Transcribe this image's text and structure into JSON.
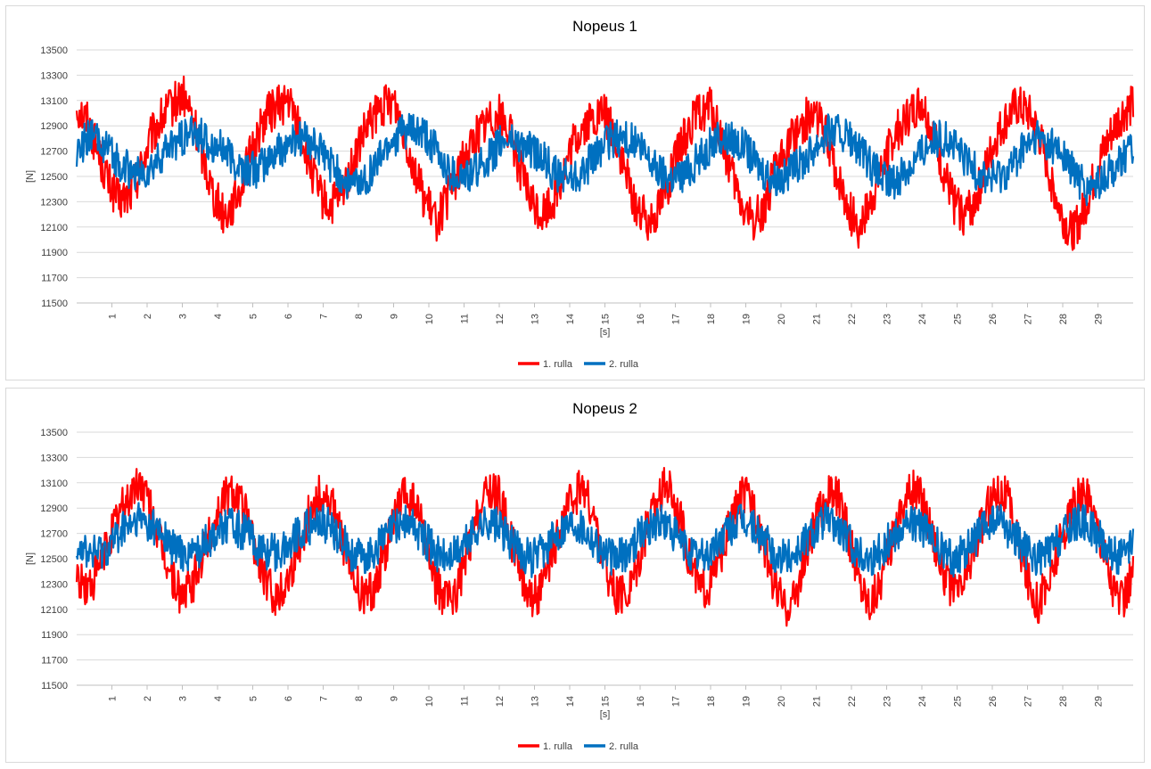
{
  "chart_data": [
    {
      "type": "line",
      "title": "Nopeus 1",
      "xlabel": "[s]",
      "ylabel": "[N]",
      "ylim": [
        11500,
        13500
      ],
      "yticks": [
        11500,
        11700,
        11900,
        12100,
        12300,
        12500,
        12700,
        12900,
        13100,
        13300,
        13500
      ],
      "xlim": [
        0,
        30
      ],
      "xticks": [
        1,
        2,
        3,
        4,
        5,
        6,
        7,
        8,
        9,
        10,
        11,
        12,
        13,
        14,
        15,
        16,
        17,
        18,
        19,
        20,
        21,
        22,
        23,
        24,
        25,
        26,
        27,
        28,
        29
      ],
      "grid": true,
      "legend_position": "bottom",
      "series": [
        {
          "name": "1. rulla",
          "color": "#ff0000",
          "x": [
            0,
            0.3,
            0.6,
            0.9,
            1.2,
            1.5,
            1.8,
            2.1,
            2.4,
            2.7,
            3.0,
            3.3,
            3.6,
            3.9,
            4.2,
            4.5,
            4.8,
            5.1,
            5.4,
            5.7,
            6.0,
            6.3,
            6.6,
            6.9,
            7.2,
            7.5,
            7.8,
            8.1,
            8.4,
            8.7,
            9.0,
            9.3,
            9.6,
            9.9,
            10.2,
            10.5,
            10.8,
            11.1,
            11.4,
            11.7,
            12.0,
            12.3,
            12.6,
            12.9,
            13.2,
            13.5,
            13.8,
            14.1,
            14.4,
            14.7,
            15.0,
            15.3,
            15.6,
            15.9,
            16.2,
            16.5,
            16.8,
            17.1,
            17.4,
            17.7,
            18.0,
            18.3,
            18.6,
            18.9,
            19.2,
            19.5,
            19.8,
            20.1,
            20.4,
            20.7,
            21.0,
            21.3,
            21.6,
            21.9,
            22.2,
            22.5,
            22.8,
            23.1,
            23.4,
            23.7,
            24.0,
            24.3,
            24.6,
            24.9,
            25.2,
            25.5,
            25.8,
            26.1,
            26.4,
            26.7,
            27.0,
            27.3,
            27.6,
            27.9,
            28.2,
            28.5,
            28.8,
            29.1,
            29.4,
            29.7,
            30.0
          ],
          "y": [
            13050,
            12950,
            12700,
            12450,
            12300,
            12350,
            12550,
            12800,
            12950,
            13050,
            13150,
            12950,
            12650,
            12350,
            12200,
            12300,
            12550,
            12800,
            13000,
            13050,
            13100,
            12900,
            12600,
            12350,
            12250,
            12350,
            12550,
            12800,
            12950,
            13050,
            13100,
            12850,
            12550,
            12300,
            12150,
            12300,
            12500,
            12700,
            12850,
            12950,
            13000,
            12850,
            12550,
            12300,
            12200,
            12300,
            12500,
            12750,
            12900,
            12950,
            13000,
            12800,
            12500,
            12250,
            12150,
            12250,
            12450,
            12700,
            12900,
            13000,
            13050,
            12800,
            12500,
            12250,
            12150,
            12250,
            12500,
            12700,
            12850,
            12950,
            13000,
            12800,
            12500,
            12250,
            12100,
            12250,
            12500,
            12750,
            12900,
            13000,
            13100,
            12850,
            12550,
            12300,
            12200,
            12300,
            12550,
            12800,
            12950,
            13050,
            13000,
            12850,
            12550,
            12250,
            12050,
            12150,
            12400,
            12650,
            12850,
            13000,
            13050
          ]
        },
        {
          "name": "2. rulla",
          "color": "#0070c0",
          "x": [
            0,
            0.3,
            0.6,
            0.9,
            1.2,
            1.5,
            1.8,
            2.1,
            2.4,
            2.7,
            3.0,
            3.3,
            3.6,
            3.9,
            4.2,
            4.5,
            4.8,
            5.1,
            5.4,
            5.7,
            6.0,
            6.3,
            6.6,
            6.9,
            7.2,
            7.5,
            7.8,
            8.1,
            8.4,
            8.7,
            9.0,
            9.3,
            9.6,
            9.9,
            10.2,
            10.5,
            10.8,
            11.1,
            11.4,
            11.7,
            12.0,
            12.3,
            12.6,
            12.9,
            13.2,
            13.5,
            13.8,
            14.1,
            14.4,
            14.7,
            15.0,
            15.3,
            15.6,
            15.9,
            16.2,
            16.5,
            16.8,
            17.1,
            17.4,
            17.7,
            18.0,
            18.3,
            18.6,
            18.9,
            19.2,
            19.5,
            19.8,
            20.1,
            20.4,
            20.7,
            21.0,
            21.3,
            21.6,
            21.9,
            22.2,
            22.5,
            22.8,
            23.1,
            23.4,
            23.7,
            24.0,
            24.3,
            24.6,
            24.9,
            25.2,
            25.5,
            25.8,
            26.1,
            26.4,
            26.7,
            27.0,
            27.3,
            27.6,
            27.9,
            28.2,
            28.5,
            28.8,
            29.1,
            29.4,
            29.7,
            30.0
          ],
          "y": [
            12700,
            12800,
            12800,
            12700,
            12600,
            12550,
            12500,
            12550,
            12650,
            12750,
            12800,
            12850,
            12800,
            12750,
            12700,
            12600,
            12550,
            12550,
            12600,
            12700,
            12750,
            12800,
            12800,
            12700,
            12600,
            12500,
            12450,
            12450,
            12550,
            12700,
            12800,
            12850,
            12850,
            12800,
            12700,
            12550,
            12500,
            12500,
            12550,
            12650,
            12750,
            12800,
            12750,
            12700,
            12650,
            12550,
            12500,
            12500,
            12550,
            12650,
            12750,
            12800,
            12800,
            12750,
            12650,
            12550,
            12500,
            12500,
            12550,
            12650,
            12750,
            12800,
            12800,
            12750,
            12650,
            12550,
            12500,
            12500,
            12550,
            12650,
            12750,
            12850,
            12850,
            12800,
            12700,
            12600,
            12500,
            12450,
            12500,
            12600,
            12700,
            12800,
            12800,
            12750,
            12650,
            12550,
            12500,
            12500,
            12550,
            12650,
            12750,
            12800,
            12750,
            12700,
            12600,
            12450,
            12400,
            12450,
            12550,
            12650,
            12700
          ]
        }
      ]
    },
    {
      "type": "line",
      "title": "Nopeus 2",
      "xlabel": "[s]",
      "ylabel": "[N]",
      "ylim": [
        11500,
        13500
      ],
      "yticks": [
        11500,
        11700,
        11900,
        12100,
        12300,
        12500,
        12700,
        12900,
        13100,
        13300,
        13500
      ],
      "xlim": [
        0,
        30
      ],
      "xticks": [
        1,
        2,
        3,
        4,
        5,
        6,
        7,
        8,
        9,
        10,
        11,
        12,
        13,
        14,
        15,
        16,
        17,
        18,
        19,
        20,
        21,
        22,
        23,
        24,
        25,
        26,
        27,
        28,
        29
      ],
      "grid": true,
      "legend_position": "bottom",
      "series": [
        {
          "name": "1. rulla",
          "color": "#ff0000",
          "x": [
            0,
            0.3,
            0.6,
            0.9,
            1.2,
            1.5,
            1.8,
            2.1,
            2.4,
            2.7,
            3.0,
            3.3,
            3.6,
            3.9,
            4.2,
            4.5,
            4.8,
            5.1,
            5.4,
            5.7,
            6.0,
            6.3,
            6.6,
            6.9,
            7.2,
            7.5,
            7.8,
            8.1,
            8.4,
            8.7,
            9.0,
            9.3,
            9.6,
            9.9,
            10.2,
            10.5,
            10.8,
            11.1,
            11.4,
            11.7,
            12.0,
            12.3,
            12.6,
            12.9,
            13.2,
            13.5,
            13.8,
            14.1,
            14.4,
            14.7,
            15.0,
            15.3,
            15.6,
            15.9,
            16.2,
            16.5,
            16.8,
            17.1,
            17.4,
            17.7,
            18.0,
            18.3,
            18.6,
            18.9,
            19.2,
            19.5,
            19.8,
            20.1,
            20.4,
            20.7,
            21.0,
            21.3,
            21.6,
            21.9,
            22.2,
            22.5,
            22.8,
            23.1,
            23.4,
            23.7,
            24.0,
            24.3,
            24.6,
            24.9,
            25.2,
            25.5,
            25.8,
            26.1,
            26.4,
            26.7,
            27.0,
            27.3,
            27.6,
            27.9,
            28.2,
            28.5,
            28.8,
            29.1,
            29.4,
            29.7,
            30.0
          ],
          "y": [
            12350,
            12250,
            12400,
            12650,
            12850,
            13000,
            13100,
            12900,
            12600,
            12350,
            12200,
            12300,
            12550,
            12800,
            13000,
            13050,
            12850,
            12550,
            12300,
            12200,
            12350,
            12600,
            12850,
            13000,
            12950,
            12700,
            12400,
            12200,
            12250,
            12500,
            12800,
            13000,
            12950,
            12650,
            12300,
            12150,
            12250,
            12550,
            12850,
            13050,
            13000,
            12700,
            12400,
            12200,
            12250,
            12500,
            12800,
            13000,
            13050,
            12800,
            12450,
            12200,
            12200,
            12450,
            12750,
            13000,
            13100,
            12850,
            12500,
            12250,
            12300,
            12550,
            12800,
            13000,
            12950,
            12650,
            12300,
            12100,
            12200,
            12500,
            12800,
            13000,
            13000,
            12700,
            12350,
            12150,
            12300,
            12600,
            12900,
            13050,
            13000,
            12700,
            12400,
            12200,
            12300,
            12600,
            12850,
            13050,
            13000,
            12700,
            12350,
            12150,
            12300,
            12600,
            12850,
            13000,
            12950,
            12650,
            12300,
            12150,
            12400
          ]
        },
        {
          "name": "2. rulla",
          "color": "#0070c0",
          "x": [
            0,
            0.3,
            0.6,
            0.9,
            1.2,
            1.5,
            1.8,
            2.1,
            2.4,
            2.7,
            3.0,
            3.3,
            3.6,
            3.9,
            4.2,
            4.5,
            4.8,
            5.1,
            5.4,
            5.7,
            6.0,
            6.3,
            6.6,
            6.9,
            7.2,
            7.5,
            7.8,
            8.1,
            8.4,
            8.7,
            9.0,
            9.3,
            9.6,
            9.9,
            10.2,
            10.5,
            10.8,
            11.1,
            11.4,
            11.7,
            12.0,
            12.3,
            12.6,
            12.9,
            13.2,
            13.5,
            13.8,
            14.1,
            14.4,
            14.7,
            15.0,
            15.3,
            15.6,
            15.9,
            16.2,
            16.5,
            16.8,
            17.1,
            17.4,
            17.7,
            18.0,
            18.3,
            18.6,
            18.9,
            19.2,
            19.5,
            19.8,
            20.1,
            20.4,
            20.7,
            21.0,
            21.3,
            21.6,
            21.9,
            22.2,
            22.5,
            22.8,
            23.1,
            23.4,
            23.7,
            24.0,
            24.3,
            24.6,
            24.9,
            25.2,
            25.5,
            25.8,
            26.1,
            26.4,
            26.7,
            27.0,
            27.3,
            27.6,
            27.9,
            28.2,
            28.5,
            28.8,
            29.1,
            29.4,
            29.7,
            30.0
          ],
          "y": [
            12650,
            12550,
            12550,
            12600,
            12700,
            12750,
            12800,
            12750,
            12700,
            12600,
            12550,
            12550,
            12600,
            12700,
            12750,
            12750,
            12700,
            12600,
            12550,
            12550,
            12600,
            12700,
            12750,
            12800,
            12750,
            12650,
            12550,
            12500,
            12550,
            12650,
            12750,
            12800,
            12750,
            12650,
            12550,
            12500,
            12550,
            12650,
            12750,
            12800,
            12750,
            12650,
            12550,
            12500,
            12550,
            12650,
            12750,
            12800,
            12750,
            12650,
            12550,
            12500,
            12550,
            12650,
            12750,
            12800,
            12750,
            12650,
            12550,
            12500,
            12550,
            12650,
            12750,
            12800,
            12750,
            12650,
            12550,
            12500,
            12550,
            12650,
            12750,
            12800,
            12750,
            12650,
            12550,
            12500,
            12550,
            12650,
            12750,
            12800,
            12750,
            12650,
            12550,
            12500,
            12550,
            12650,
            12750,
            12800,
            12750,
            12650,
            12550,
            12500,
            12550,
            12650,
            12750,
            12800,
            12750,
            12650,
            12550,
            12500,
            12600
          ]
        }
      ]
    }
  ]
}
